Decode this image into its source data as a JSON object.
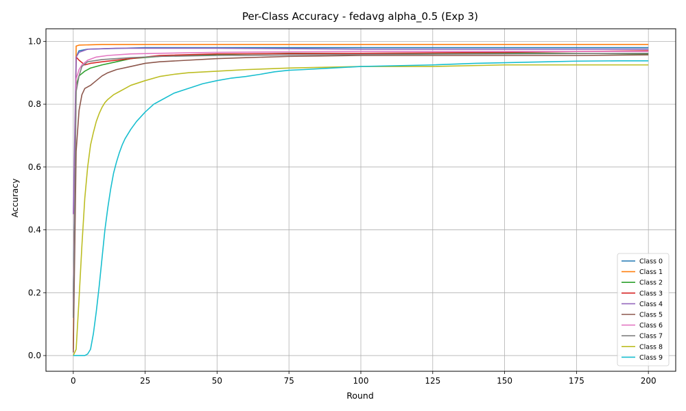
{
  "chart_data": {
    "type": "line",
    "title": "Per-Class Accuracy - fedavg alpha_0.5 (Exp 3)",
    "xlabel": "Round",
    "ylabel": "Accuracy",
    "xlim": [
      -9.5,
      209.5
    ],
    "ylim": [
      -0.05,
      1.04
    ],
    "xticks": [
      0,
      25,
      50,
      75,
      100,
      125,
      150,
      175,
      200
    ],
    "yticks": [
      0.0,
      0.2,
      0.4,
      0.6,
      0.8,
      1.0
    ],
    "xtick_labels": [
      "0",
      "25",
      "50",
      "75",
      "100",
      "125",
      "150",
      "175",
      "200"
    ],
    "ytick_labels": [
      "0.0",
      "0.2",
      "0.4",
      "0.6",
      "0.8",
      "1.0"
    ],
    "grid": true,
    "legend_position": "lower-right",
    "series": [
      {
        "name": "Class 0",
        "color": "#1f77b4",
        "points": [
          [
            0,
            0.18
          ],
          [
            1,
            0.95
          ],
          [
            2,
            0.97
          ],
          [
            5,
            0.975
          ],
          [
            25,
            0.98
          ],
          [
            50,
            0.98
          ],
          [
            100,
            0.98
          ],
          [
            150,
            0.98
          ],
          [
            200,
            0.98
          ]
        ]
      },
      {
        "name": "Class 1",
        "color": "#ff7f0e",
        "points": [
          [
            0,
            0.02
          ],
          [
            1,
            0.985
          ],
          [
            2,
            0.988
          ],
          [
            10,
            0.99
          ],
          [
            50,
            0.99
          ],
          [
            100,
            0.99
          ],
          [
            150,
            0.99
          ],
          [
            200,
            0.99
          ]
        ]
      },
      {
        "name": "Class 2",
        "color": "#2ca02c",
        "points": [
          [
            0,
            0.18
          ],
          [
            1,
            0.86
          ],
          [
            2,
            0.89
          ],
          [
            4,
            0.905
          ],
          [
            6,
            0.915
          ],
          [
            10,
            0.925
          ],
          [
            15,
            0.935
          ],
          [
            20,
            0.945
          ],
          [
            30,
            0.952
          ],
          [
            50,
            0.958
          ],
          [
            75,
            0.962
          ],
          [
            100,
            0.962
          ],
          [
            150,
            0.963
          ],
          [
            200,
            0.96
          ]
        ]
      },
      {
        "name": "Class 3",
        "color": "#d62728",
        "points": [
          [
            0,
            0.12
          ],
          [
            1,
            0.95
          ],
          [
            2,
            0.94
          ],
          [
            4,
            0.925
          ],
          [
            6,
            0.93
          ],
          [
            10,
            0.935
          ],
          [
            20,
            0.945
          ],
          [
            30,
            0.955
          ],
          [
            50,
            0.96
          ],
          [
            100,
            0.962
          ],
          [
            150,
            0.965
          ],
          [
            200,
            0.97
          ]
        ]
      },
      {
        "name": "Class 4",
        "color": "#9467bd",
        "points": [
          [
            0,
            0.45
          ],
          [
            1,
            0.95
          ],
          [
            2,
            0.965
          ],
          [
            5,
            0.975
          ],
          [
            15,
            0.978
          ],
          [
            25,
            0.978
          ],
          [
            50,
            0.978
          ],
          [
            100,
            0.975
          ],
          [
            150,
            0.975
          ],
          [
            200,
            0.975
          ]
        ]
      },
      {
        "name": "Class 5",
        "color": "#8c564b",
        "points": [
          [
            0,
            0.01
          ],
          [
            1,
            0.65
          ],
          [
            2,
            0.78
          ],
          [
            3,
            0.83
          ],
          [
            4,
            0.85
          ],
          [
            6,
            0.86
          ],
          [
            8,
            0.875
          ],
          [
            10,
            0.89
          ],
          [
            12,
            0.9
          ],
          [
            15,
            0.91
          ],
          [
            20,
            0.92
          ],
          [
            25,
            0.93
          ],
          [
            30,
            0.935
          ],
          [
            40,
            0.94
          ],
          [
            50,
            0.945
          ],
          [
            60,
            0.948
          ],
          [
            75,
            0.952
          ],
          [
            100,
            0.955
          ],
          [
            125,
            0.955
          ],
          [
            150,
            0.955
          ],
          [
            175,
            0.955
          ],
          [
            200,
            0.957
          ]
        ]
      },
      {
        "name": "Class 6",
        "color": "#e377c2",
        "points": [
          [
            0,
            0.17
          ],
          [
            1,
            0.88
          ],
          [
            2,
            0.91
          ],
          [
            3,
            0.925
          ],
          [
            5,
            0.94
          ],
          [
            8,
            0.95
          ],
          [
            12,
            0.955
          ],
          [
            20,
            0.96
          ],
          [
            30,
            0.962
          ],
          [
            50,
            0.965
          ],
          [
            100,
            0.968
          ],
          [
            150,
            0.968
          ],
          [
            200,
            0.968
          ]
        ]
      },
      {
        "name": "Class 7",
        "color": "#7f7f7f",
        "points": [
          [
            0,
            0.12
          ],
          [
            1,
            0.84
          ],
          [
            2,
            0.89
          ],
          [
            3,
            0.92
          ],
          [
            5,
            0.935
          ],
          [
            10,
            0.942
          ],
          [
            20,
            0.948
          ],
          [
            30,
            0.952
          ],
          [
            50,
            0.955
          ],
          [
            100,
            0.958
          ],
          [
            150,
            0.96
          ],
          [
            200,
            0.962
          ]
        ]
      },
      {
        "name": "Class 8",
        "color": "#bcbd22",
        "points": [
          [
            0,
            0.0
          ],
          [
            1,
            0.02
          ],
          [
            2,
            0.18
          ],
          [
            3,
            0.35
          ],
          [
            4,
            0.5
          ],
          [
            5,
            0.6
          ],
          [
            6,
            0.67
          ],
          [
            7,
            0.71
          ],
          [
            8,
            0.745
          ],
          [
            9,
            0.77
          ],
          [
            10,
            0.79
          ],
          [
            11,
            0.805
          ],
          [
            12,
            0.815
          ],
          [
            14,
            0.83
          ],
          [
            16,
            0.84
          ],
          [
            18,
            0.85
          ],
          [
            20,
            0.86
          ],
          [
            25,
            0.875
          ],
          [
            30,
            0.888
          ],
          [
            35,
            0.895
          ],
          [
            40,
            0.9
          ],
          [
            50,
            0.905
          ],
          [
            60,
            0.91
          ],
          [
            75,
            0.915
          ],
          [
            100,
            0.92
          ],
          [
            125,
            0.92
          ],
          [
            150,
            0.925
          ],
          [
            175,
            0.925
          ],
          [
            200,
            0.925
          ]
        ]
      },
      {
        "name": "Class 9",
        "color": "#17becf",
        "points": [
          [
            0,
            0.0
          ],
          [
            1,
            0.0
          ],
          [
            3,
            0.0
          ],
          [
            4,
            0.0
          ],
          [
            5,
            0.005
          ],
          [
            6,
            0.02
          ],
          [
            7,
            0.07
          ],
          [
            8,
            0.14
          ],
          [
            9,
            0.22
          ],
          [
            10,
            0.31
          ],
          [
            11,
            0.4
          ],
          [
            12,
            0.47
          ],
          [
            13,
            0.53
          ],
          [
            14,
            0.58
          ],
          [
            15,
            0.615
          ],
          [
            16,
            0.645
          ],
          [
            17,
            0.67
          ],
          [
            18,
            0.69
          ],
          [
            20,
            0.72
          ],
          [
            22,
            0.745
          ],
          [
            25,
            0.775
          ],
          [
            28,
            0.8
          ],
          [
            30,
            0.81
          ],
          [
            35,
            0.835
          ],
          [
            40,
            0.85
          ],
          [
            45,
            0.865
          ],
          [
            50,
            0.875
          ],
          [
            55,
            0.883
          ],
          [
            60,
            0.888
          ],
          [
            65,
            0.895
          ],
          [
            70,
            0.903
          ],
          [
            75,
            0.908
          ],
          [
            80,
            0.91
          ],
          [
            90,
            0.915
          ],
          [
            100,
            0.92
          ],
          [
            110,
            0.922
          ],
          [
            125,
            0.925
          ],
          [
            140,
            0.93
          ],
          [
            150,
            0.932
          ],
          [
            165,
            0.935
          ],
          [
            175,
            0.937
          ],
          [
            190,
            0.938
          ],
          [
            200,
            0.938
          ]
        ]
      }
    ]
  }
}
